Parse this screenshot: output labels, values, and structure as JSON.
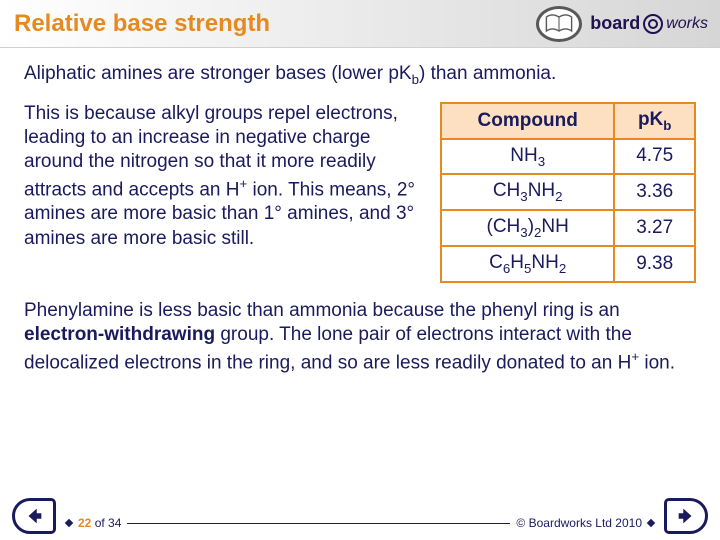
{
  "header": {
    "title": "Relative base strength",
    "logo_left": "board",
    "logo_right": "works"
  },
  "body": {
    "intro_a": "Aliphatic amines are stronger bases (lower pK",
    "intro_b": ") than ammonia.",
    "mid_a": "This is because alkyl groups repel electrons, leading to an increase in negative charge around the nitrogen so that it more readily attracts and accepts an H",
    "mid_b": " ion. This means, 2° amines are more basic than 1° amines, and 3° amines are more basic still.",
    "phenyl_a": "Phenylamine is less basic than ammonia because the phenyl ring is an ",
    "phenyl_bold": "electron-withdrawing",
    "phenyl_b": " group. The lone pair of electrons interact with the delocalized electrons in the ring, and so are less readily donated to an H",
    "phenyl_c": " ion."
  },
  "table": {
    "header_compound": "Compound",
    "header_pkb_a": "pK",
    "rows": [
      {
        "compound_html": "NH<sub>3</sub>",
        "pkb": "4.75"
      },
      {
        "compound_html": "CH<sub>3</sub>NH<sub>2</sub>",
        "pkb": "3.36"
      },
      {
        "compound_html": "(CH<sub>3</sub>)<sub>2</sub>NH",
        "pkb": "3.27"
      },
      {
        "compound_html": "C<sub>6</sub>H<sub>5</sub>NH<sub>2</sub>",
        "pkb": "9.38"
      }
    ],
    "border_color": "#e58a1f",
    "header_bg": "#fde0c2"
  },
  "footer": {
    "page": "22",
    "of_prefix": " of ",
    "total": "34",
    "copyright": "© Boardworks Ltd 2010"
  },
  "colors": {
    "accent": "#e58a1f",
    "navy": "#1a1a5e"
  }
}
